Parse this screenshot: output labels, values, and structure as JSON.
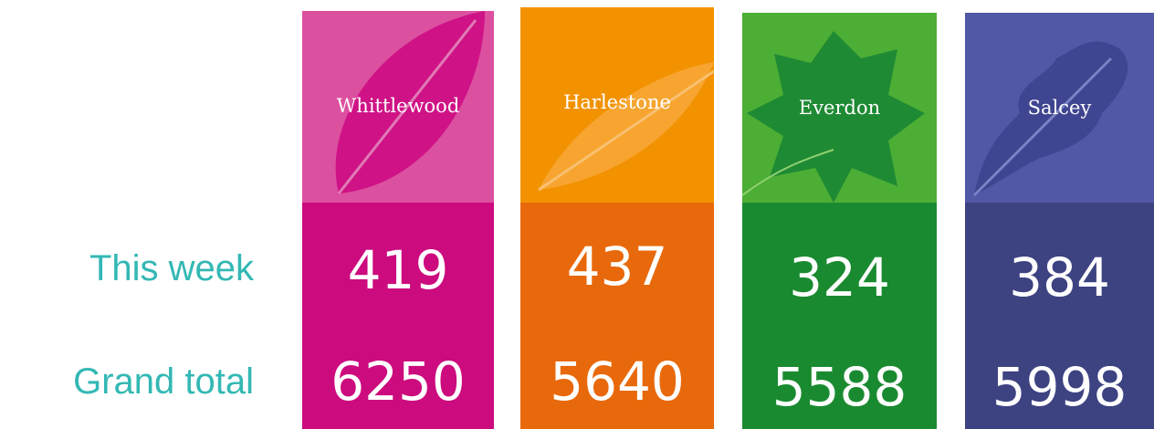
{
  "row_labels": [
    "This week",
    "Grand total"
  ],
  "sites": [
    {
      "name": "Whittlewood",
      "this_week": 419,
      "grand_total": 6250
    },
    {
      "name": "Harlestone",
      "this_week": 437,
      "grand_total": 5640
    },
    {
      "name": "Everdon",
      "this_week": 324,
      "grand_total": 5588
    },
    {
      "name": "Salcey",
      "this_week": 384,
      "grand_total": 5998
    }
  ]
}
